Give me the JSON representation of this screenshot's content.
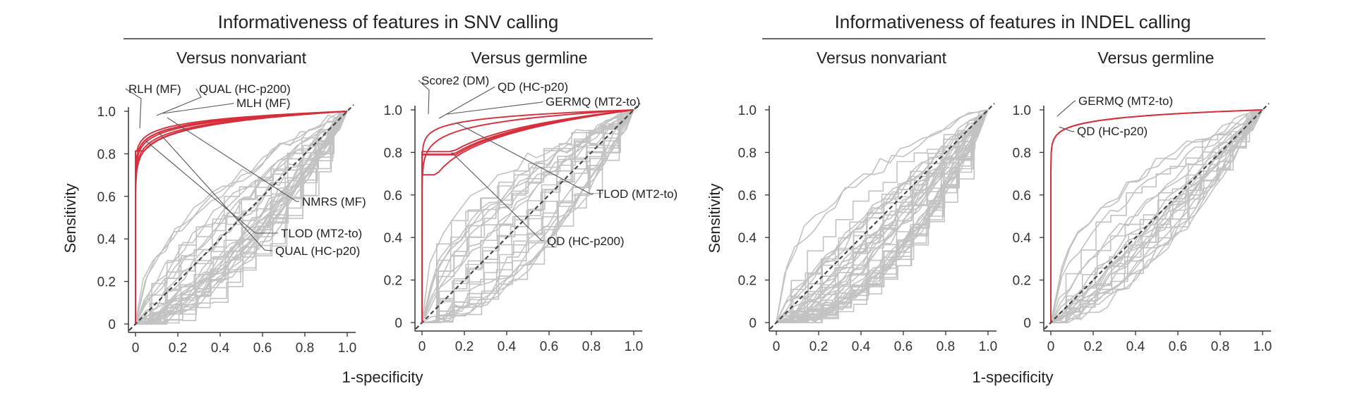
{
  "figure": {
    "group_titles": {
      "snv": "Informativeness of features in SNV calling",
      "indel": "Informativeness of features in INDEL calling"
    },
    "xlabel": "1-specificity",
    "ylabel": "Sensitivity",
    "tick_labels": [
      "0",
      "0.2",
      "0.4",
      "0.6",
      "0.8",
      "1.0"
    ],
    "colors": {
      "informative": "#d62f3c",
      "other": "#c2c2c2",
      "diagonal": "#444444",
      "axis": "#333333"
    }
  },
  "chart_data": [
    {
      "type": "line",
      "title": "Versus nonvariant",
      "group": "snv",
      "xlabel": "",
      "ylabel": "Sensitivity",
      "xlim": [
        0,
        1
      ],
      "ylim": [
        0,
        1
      ],
      "highlighted": [
        {
          "name": "RLH (MF)",
          "label_point": [
            0.02,
            0.92
          ]
        },
        {
          "name": "QUAL (HC-p200)",
          "label_point": [
            0.1,
            0.98
          ]
        },
        {
          "name": "MLH (MF)",
          "label_point": [
            0.13,
            0.99
          ]
        },
        {
          "name": "NMRS (MF)",
          "label_point": [
            0.15,
            0.97
          ]
        },
        {
          "name": "TLOD (MT2-to)",
          "label_point": [
            0.05,
            0.86
          ]
        },
        {
          "name": "QUAL (HC-p20)",
          "label_point": [
            0.11,
            0.9
          ]
        }
      ]
    },
    {
      "type": "line",
      "title": "Versus germline",
      "group": "snv",
      "xlabel": "",
      "ylabel": "",
      "xlim": [
        0,
        1
      ],
      "ylim": [
        0,
        1
      ],
      "highlighted": [
        {
          "name": "Score2 (DM)",
          "label_point": [
            0.03,
            0.98
          ]
        },
        {
          "name": "QD (HC-p20)",
          "label_point": [
            0.08,
            0.96
          ]
        },
        {
          "name": "GERMQ (MT2-to)",
          "label_point": [
            0.12,
            0.98
          ]
        },
        {
          "name": "TLOD (MT2-to)",
          "label_point": [
            0.16,
            0.94
          ]
        },
        {
          "name": "QD (HC-p200)",
          "label_point": [
            0.14,
            0.8
          ]
        }
      ]
    },
    {
      "type": "line",
      "title": "Versus nonvariant",
      "group": "indel",
      "xlabel": "",
      "ylabel": "Sensitivity",
      "xlim": [
        0,
        1
      ],
      "ylim": [
        0,
        1
      ],
      "highlighted": []
    },
    {
      "type": "line",
      "title": "Versus germline",
      "group": "indel",
      "xlabel": "",
      "ylabel": "",
      "xlim": [
        0,
        1
      ],
      "ylim": [
        0,
        1
      ],
      "highlighted": [
        {
          "name": "GERMQ (MT2-to)",
          "label_point": [
            0.03,
            0.97
          ]
        },
        {
          "name": "QD (HC-p20)",
          "label_point": [
            0.04,
            0.92
          ]
        }
      ]
    }
  ]
}
